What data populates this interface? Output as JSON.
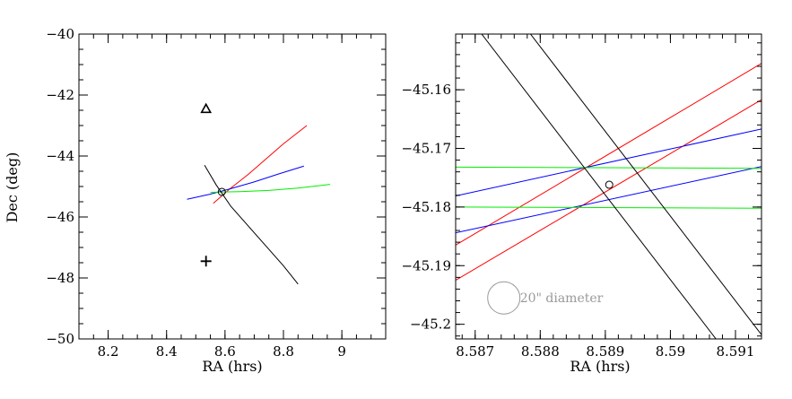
{
  "chart_data": [
    {
      "type": "line",
      "panel": "left",
      "xlabel": "RA (hrs)",
      "ylabel": "Dec (deg)",
      "xlim": [
        8.1,
        9.15
      ],
      "ylim": [
        -50,
        -40
      ],
      "xticks": [
        8.2,
        8.4,
        8.6,
        8.8,
        9
      ],
      "xtick_labels": [
        "8.2",
        "8.4",
        "8.6",
        "8.8",
        "9"
      ],
      "xminor": 0.05,
      "yticks": [
        -50,
        -48,
        -46,
        -44,
        -42,
        -40
      ],
      "ytick_labels": [
        "−50",
        "−48",
        "−46",
        "−44",
        "−42",
        "−40"
      ],
      "yminor": 0.5,
      "series": [
        {
          "name": "red",
          "color": "#ff0000",
          "x": [
            8.56,
            8.62,
            8.68,
            8.74,
            8.8,
            8.88
          ],
          "y": [
            -45.55,
            -45.05,
            -44.6,
            -44.1,
            -43.6,
            -43.0
          ]
        },
        {
          "name": "blue",
          "color": "#0000ff",
          "x": [
            8.47,
            8.55,
            8.62,
            8.7,
            8.78,
            8.87
          ],
          "y": [
            -45.42,
            -45.25,
            -45.07,
            -44.85,
            -44.6,
            -44.33
          ]
        },
        {
          "name": "green",
          "color": "#00ee00",
          "x": [
            8.55,
            8.65,
            8.75,
            8.85,
            8.96
          ],
          "y": [
            -45.19,
            -45.17,
            -45.13,
            -45.05,
            -44.93
          ]
        },
        {
          "name": "black",
          "color": "#000000",
          "x": [
            8.53,
            8.57,
            8.62,
            8.68,
            8.74,
            8.8,
            8.85
          ],
          "y": [
            -44.3,
            -44.95,
            -45.65,
            -46.3,
            -46.95,
            -47.6,
            -48.2
          ]
        }
      ],
      "markers": [
        {
          "symbol": "triangle",
          "x": 8.535,
          "y": -42.45
        },
        {
          "symbol": "plus",
          "x": 8.535,
          "y": -47.45
        },
        {
          "symbol": "circle",
          "x": 8.589,
          "y": -45.176
        }
      ]
    },
    {
      "type": "line",
      "panel": "right",
      "xlabel": "RA (hrs)",
      "ylabel": "",
      "xlim": [
        8.5867,
        8.5914
      ],
      "ylim": [
        -45.2025,
        -45.1505
      ],
      "xticks": [
        8.587,
        8.588,
        8.589,
        8.59,
        8.591
      ],
      "xtick_labels": [
        "8.587",
        "8.588",
        "8.589",
        "8.59",
        "8.591"
      ],
      "xminor": 0.0002,
      "yticks": [
        -45.2,
        -45.19,
        -45.18,
        -45.17,
        -45.16
      ],
      "ytick_labels": [
        "−45.2",
        "−45.19",
        "−45.18",
        "−45.17",
        "−45.16"
      ],
      "yminor": 0.002,
      "series": [
        {
          "name": "red-1",
          "color": "#ff0000",
          "x": [
            8.5867,
            8.5914
          ],
          "y": [
            -45.1865,
            -45.1555
          ]
        },
        {
          "name": "red-2",
          "color": "#ff0000",
          "x": [
            8.5867,
            8.5914
          ],
          "y": [
            -45.1925,
            -45.1617
          ]
        },
        {
          "name": "blue-1",
          "color": "#0000ff",
          "x": [
            8.5867,
            8.5914
          ],
          "y": [
            -45.1781,
            -45.1667
          ]
        },
        {
          "name": "blue-2",
          "color": "#0000ff",
          "x": [
            8.5867,
            8.5914
          ],
          "y": [
            -45.1844,
            -45.1731
          ]
        },
        {
          "name": "green-1",
          "color": "#00ee00",
          "x": [
            8.5867,
            8.5914
          ],
          "y": [
            -45.1732,
            -45.1734
          ]
        },
        {
          "name": "green-2",
          "color": "#00ee00",
          "x": [
            8.5867,
            8.5914
          ],
          "y": [
            -45.18,
            -45.1802
          ]
        },
        {
          "name": "black-1",
          "color": "#000000",
          "x": [
            8.5871,
            8.5907
          ],
          "y": [
            -45.1505,
            -45.2025
          ]
        },
        {
          "name": "black-2",
          "color": "#000000",
          "x": [
            8.58785,
            8.59145
          ],
          "y": [
            -45.1505,
            -45.2025
          ]
        }
      ],
      "markers": [
        {
          "symbol": "circle",
          "x": 8.58906,
          "y": -45.1762
        }
      ],
      "scale_marker": {
        "label": "20\" diameter",
        "x": 8.58744,
        "y": -45.1955
      }
    }
  ]
}
